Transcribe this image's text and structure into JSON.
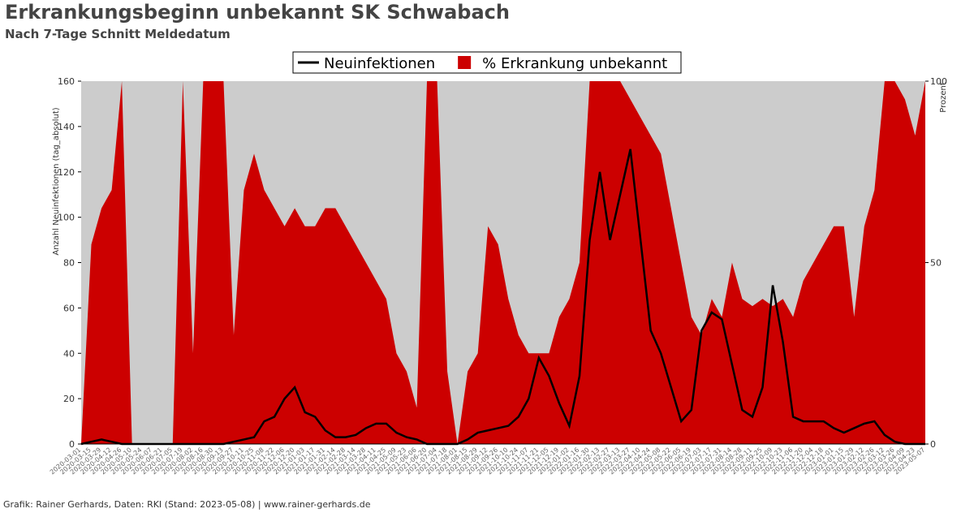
{
  "chart_data": {
    "type": "line-area",
    "title": "Erkrankungsbeginn unbekannt SK Schwabach",
    "subtitle": "Nach 7-Tage Schnitt Meldedatum",
    "ylabel": "Anzahl Neuinfektionen (tag_absolut)",
    "y2label": "Prozent",
    "source": "Grafik: Rainer Gerhards, Daten: RKI (Stand: 2023-05-08) | www.rainer-gerhards.de",
    "x": [
      "2020-03-01",
      "2020-03-15",
      "2020-03-29",
      "2020-04-12",
      "2020-04-26",
      "2020-05-10",
      "2020-05-24",
      "2020-06-07",
      "2020-06-21",
      "2020-07-05",
      "2020-07-19",
      "2020-08-02",
      "2020-08-16",
      "2020-08-30",
      "2020-09-13",
      "2020-09-27",
      "2020-10-11",
      "2020-10-25",
      "2020-11-08",
      "2020-11-22",
      "2020-12-06",
      "2020-12-20",
      "2021-01-03",
      "2021-01-17",
      "2021-01-31",
      "2021-02-14",
      "2021-02-28",
      "2021-03-14",
      "2021-03-28",
      "2021-04-11",
      "2021-04-25",
      "2021-05-09",
      "2021-05-23",
      "2021-06-06",
      "2021-06-20",
      "2021-07-04",
      "2021-07-18",
      "2021-08-01",
      "2021-08-15",
      "2021-08-29",
      "2021-09-12",
      "2021-09-26",
      "2021-10-10",
      "2021-10-24",
      "2021-11-07",
      "2021-11-21",
      "2021-12-05",
      "2021-12-19",
      "2022-01-02",
      "2022-01-16",
      "2022-01-30",
      "2022-02-13",
      "2022-02-27",
      "2022-03-13",
      "2022-03-27",
      "2022-04-10",
      "2022-04-24",
      "2022-05-08",
      "2022-05-22",
      "2022-06-05",
      "2022-06-19",
      "2022-07-03",
      "2022-07-17",
      "2022-07-31",
      "2022-08-14",
      "2022-08-28",
      "2022-09-11",
      "2022-09-25",
      "2022-10-09",
      "2022-10-23",
      "2022-11-06",
      "2022-11-20",
      "2022-12-04",
      "2022-12-18",
      "2023-01-01",
      "2023-01-15",
      "2023-01-29",
      "2023-02-12",
      "2023-02-26",
      "2023-03-12",
      "2023-03-26",
      "2023-04-09",
      "2023-04-23",
      "2023-05-07"
    ],
    "series": [
      {
        "name": "Neuinfektionen",
        "color": "#000000",
        "axis": "y",
        "values": [
          0,
          1,
          2,
          1,
          0,
          0,
          0,
          0,
          0,
          0,
          0,
          0,
          0,
          0,
          0,
          1,
          2,
          3,
          10,
          12,
          20,
          25,
          14,
          12,
          6,
          3,
          3,
          4,
          7,
          9,
          9,
          5,
          3,
          2,
          0,
          0,
          0,
          0,
          2,
          5,
          6,
          7,
          8,
          12,
          20,
          38,
          30,
          18,
          8,
          30,
          90,
          120,
          90,
          110,
          130,
          90,
          50,
          40,
          25,
          10,
          15,
          50,
          58,
          55,
          35,
          15,
          12,
          25,
          70,
          45,
          12,
          10,
          10,
          10,
          7,
          5,
          7,
          9,
          10,
          4,
          1,
          0,
          0,
          0
        ]
      },
      {
        "name": "% Erkrankung unbekannt",
        "color": "#cc0000",
        "axis": "y2",
        "values": [
          0,
          55,
          65,
          70,
          100,
          0,
          0,
          0,
          0,
          0,
          100,
          25,
          100,
          100,
          100,
          30,
          70,
          80,
          70,
          65,
          60,
          65,
          60,
          60,
          65,
          65,
          60,
          55,
          50,
          45,
          40,
          25,
          20,
          10,
          100,
          100,
          20,
          0,
          20,
          25,
          60,
          55,
          40,
          30,
          25,
          25,
          25,
          35,
          40,
          50,
          100,
          100,
          100,
          100,
          95,
          90,
          85,
          80,
          65,
          50,
          35,
          30,
          40,
          35,
          50,
          40,
          38,
          40,
          38,
          40,
          35,
          45,
          50,
          55,
          60,
          60,
          35,
          60,
          70,
          100,
          100,
          95,
          85,
          100
        ]
      }
    ],
    "ylim": [
      0,
      160
    ],
    "yticks": [
      0,
      20,
      40,
      60,
      80,
      100,
      120,
      140,
      160
    ],
    "y2lim": [
      0,
      100
    ],
    "y2ticks": [
      0,
      50,
      100
    ],
    "legend": "top"
  }
}
